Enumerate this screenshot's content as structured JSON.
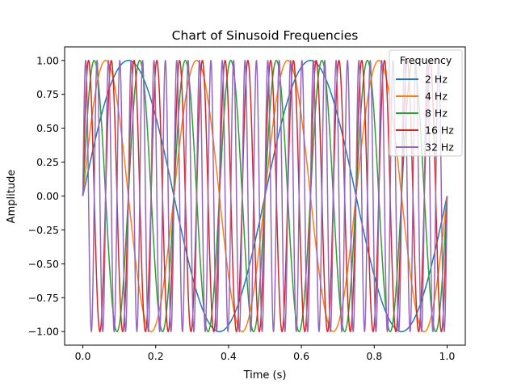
{
  "chart_data": {
    "type": "line",
    "title": "Chart of Sinusoid Frequencies",
    "xlabel": "Time (s)",
    "ylabel": "Amplitude",
    "xlim": [
      -0.05,
      1.05
    ],
    "ylim": [
      -1.1,
      1.1
    ],
    "xticks": [
      0.0,
      0.2,
      0.4,
      0.6,
      0.8,
      1.0
    ],
    "xtick_labels": [
      "0.0",
      "0.2",
      "0.4",
      "0.6",
      "0.8",
      "1.0"
    ],
    "yticks": [
      -1.0,
      -0.75,
      -0.5,
      -0.25,
      0.0,
      0.25,
      0.5,
      0.75,
      1.0
    ],
    "ytick_labels": [
      "−1.00",
      "−0.75",
      "−0.50",
      "−0.25",
      "0.00",
      "0.25",
      "0.50",
      "0.75",
      "1.00"
    ],
    "grid": false,
    "x_range": [
      0,
      1
    ],
    "function": "sin",
    "legend": {
      "title": "Frequency",
      "placement": "top-right"
    },
    "series": [
      {
        "name": "2 Hz",
        "frequency_hz": 2,
        "color": "#1f77b4"
      },
      {
        "name": "4 Hz",
        "frequency_hz": 4,
        "color": "#ff7f0e"
      },
      {
        "name": "8 Hz",
        "frequency_hz": 8,
        "color": "#2ca02c"
      },
      {
        "name": "16 Hz",
        "frequency_hz": 16,
        "color": "#d62728"
      },
      {
        "name": "32 Hz",
        "frequency_hz": 32,
        "color": "#9467bd"
      }
    ]
  }
}
